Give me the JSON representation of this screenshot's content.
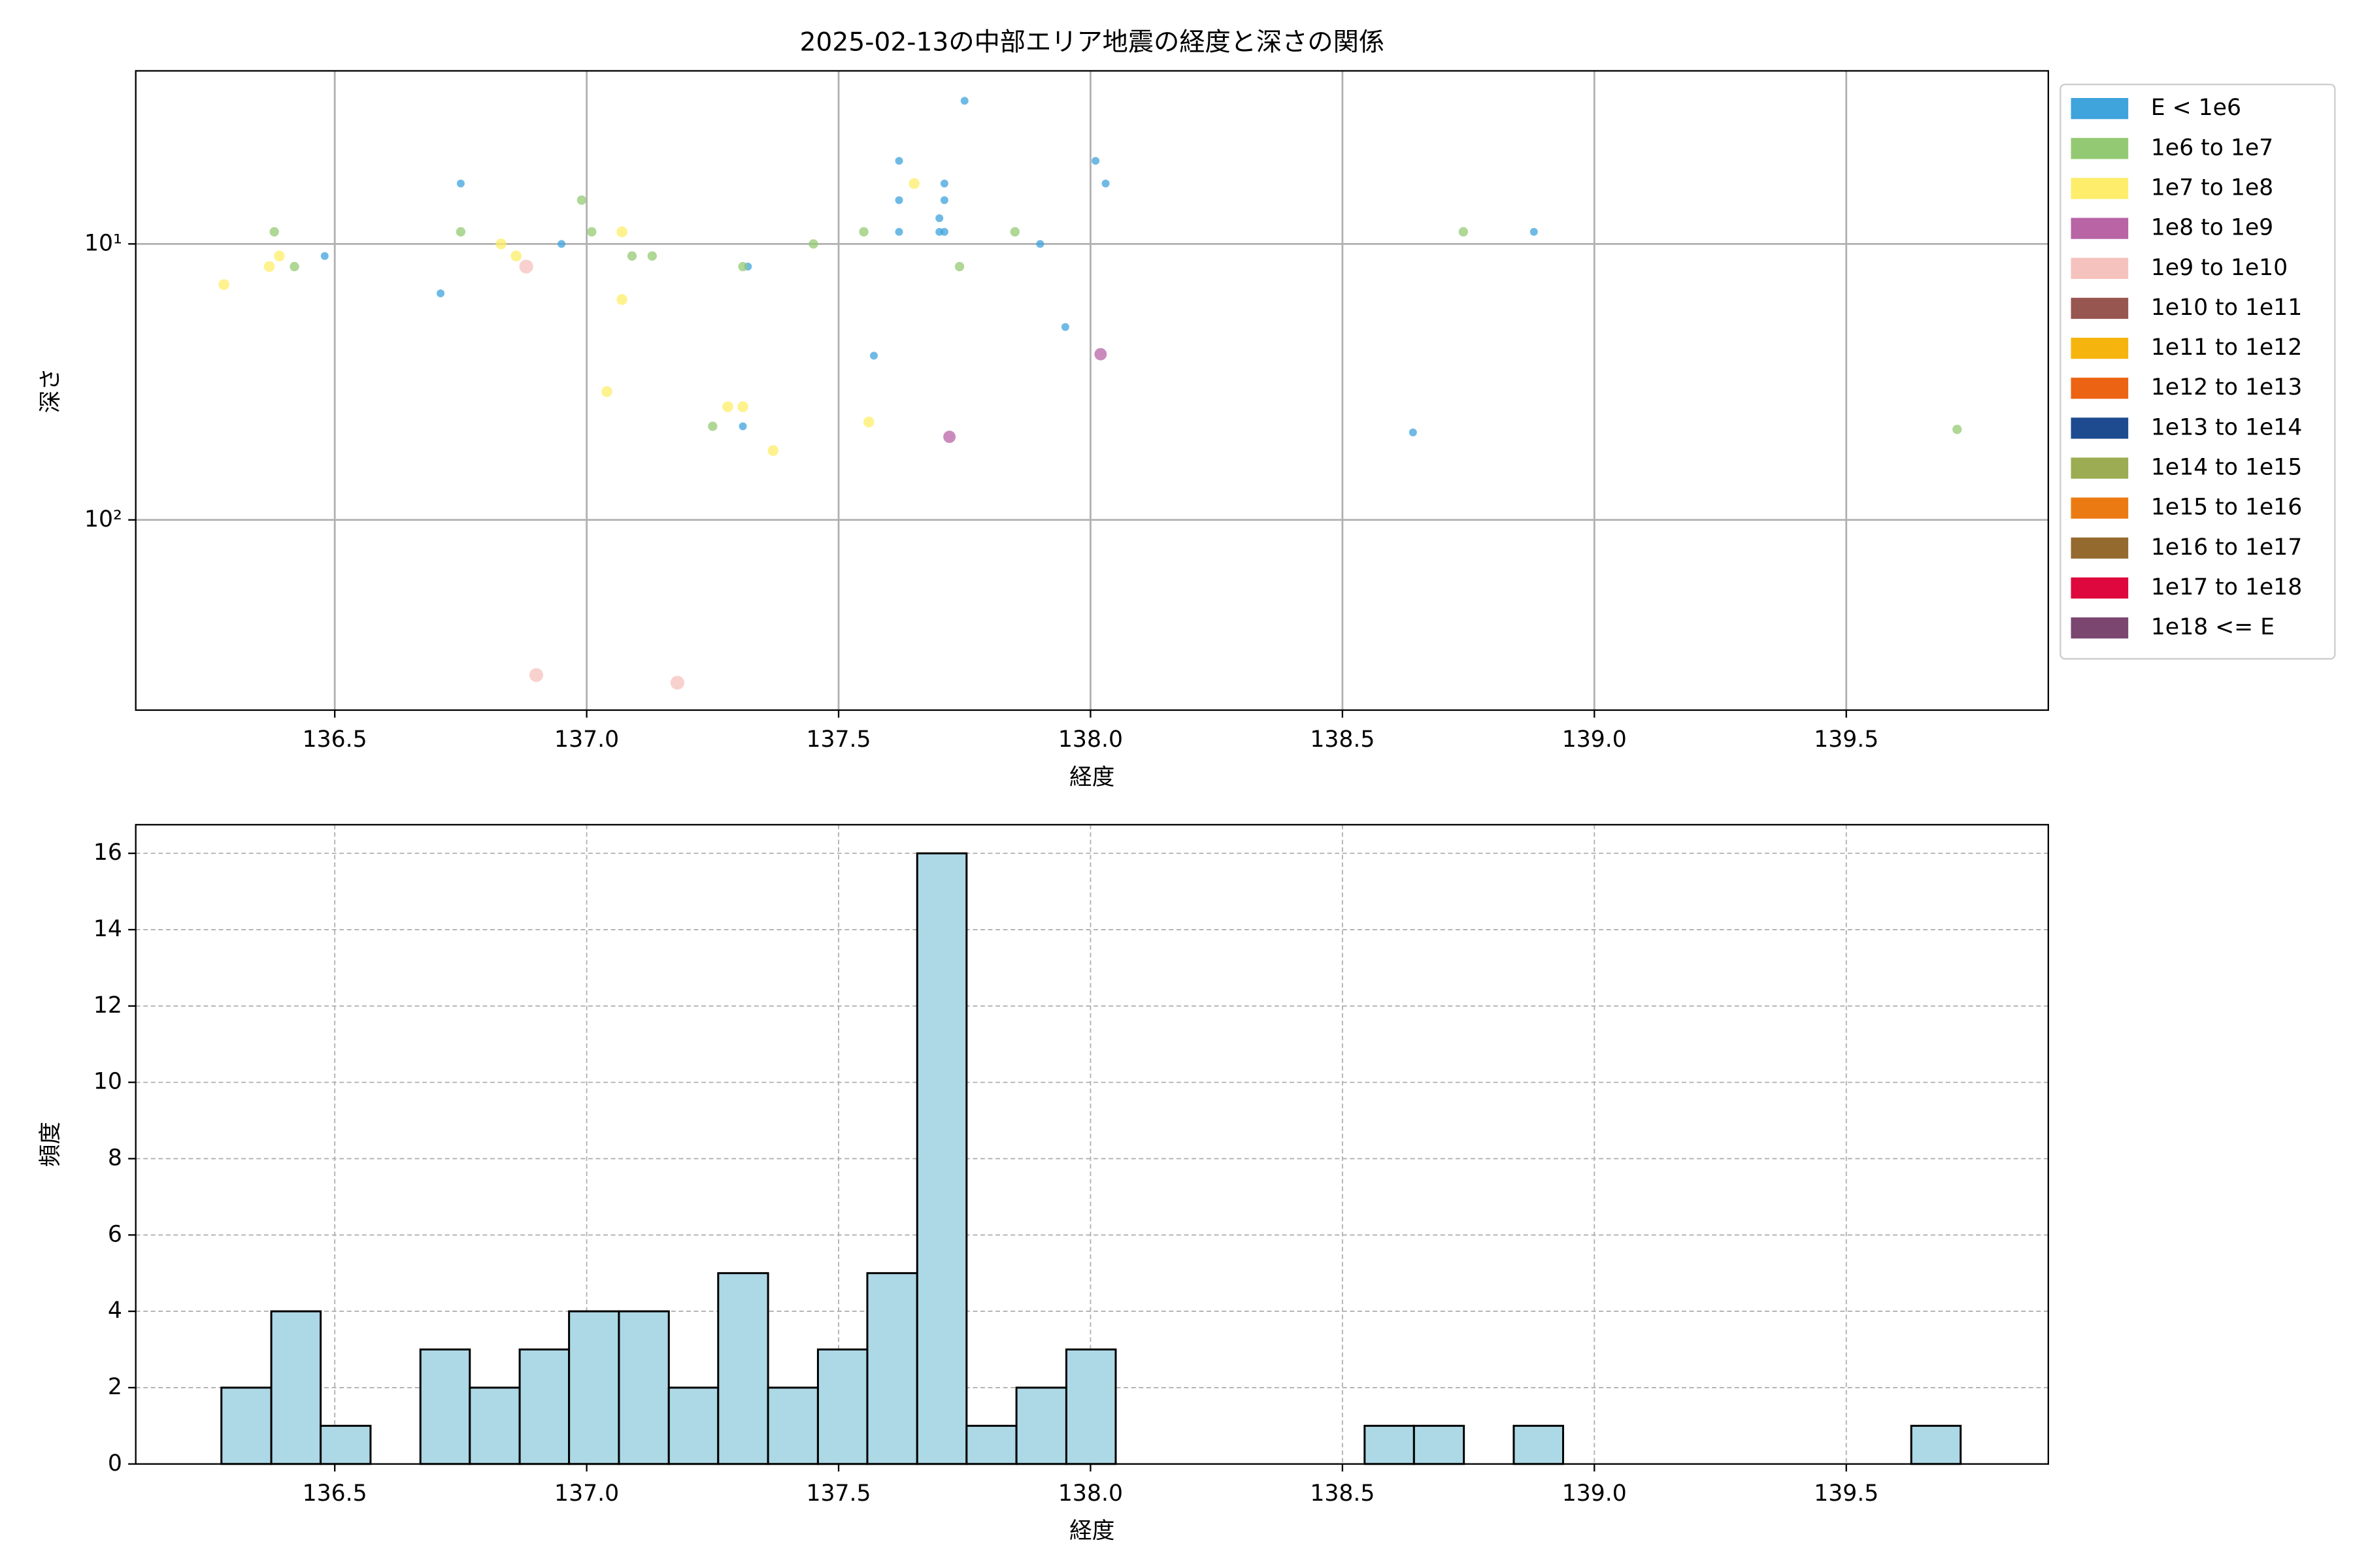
{
  "chart_data": [
    {
      "type": "scatter",
      "title": "2025-02-13の中部エリア地震の経度と深さの関係",
      "xlabel": "経度",
      "ylabel": "深さ",
      "xlim": [
        136.105,
        139.901
      ],
      "ylim": [
        2.36,
        489
      ],
      "yscale": "log",
      "yinvert": true,
      "grid": true,
      "legend": "outside-right",
      "xticks": [
        136.5,
        {
          "value": 137,
          "label": "137.0"
        },
        137.5,
        {
          "value": 138,
          "label": "138.0"
        },
        138.5,
        {
          "value": 139,
          "label": "139.0"
        },
        139.5
      ],
      "yticks": [
        {
          "value": 10,
          "label": "10¹"
        },
        {
          "value": 100,
          "label": "10²"
        }
      ],
      "series": [
        {
          "name": "E < 1e6",
          "color": "#3fa3dc",
          "x": [
            136.75,
            136.48,
            136.71,
            136.95,
            137.31,
            137.32,
            137.57,
            137.62,
            137.62,
            137.62,
            137.75,
            137.71,
            137.71,
            137.7,
            137.7,
            137.71,
            137.9,
            137.95,
            138.01,
            138.03,
            138.64,
            138.88
          ],
          "values": [
            6.04,
            11.06,
            15.1,
            10,
            45.8,
            12.08,
            25.4,
            5.0,
            6.94,
            9.04,
            3.03,
            6.04,
            6.94,
            8.07,
            9.04,
            9.04,
            10,
            20,
            5.0,
            6.04,
            48.2,
            9.04
          ]
        },
        {
          "name": "1e6 to 1e7",
          "color": "#94c973",
          "x": [
            136.38,
            136.42,
            136.75,
            136.99,
            137.01,
            137.09,
            137.13,
            137.25,
            137.31,
            137.45,
            137.55,
            137.74,
            137.85,
            138.74,
            139.72
          ],
          "values": [
            9.04,
            12.08,
            9.04,
            6.94,
            9.04,
            11.06,
            11.06,
            45.8,
            12.08,
            10,
            9.04,
            12.08,
            9.04,
            9.04,
            47.0
          ]
        },
        {
          "name": "1e7 to 1e8",
          "color": "#fded6a",
          "x": [
            136.28,
            136.37,
            136.39,
            136.83,
            136.86,
            137.07,
            137.07,
            137.04,
            137.28,
            137.31,
            137.37,
            137.56,
            137.65
          ],
          "values": [
            14.04,
            12.08,
            11.06,
            10,
            11.06,
            9.04,
            15.9,
            34.3,
            38.9,
            38.9,
            56.1,
            44.2,
            6.04
          ]
        },
        {
          "name": "1e8 to 1e9",
          "color": "#b864a5",
          "x": [
            137.72,
            138.02
          ],
          "values": [
            50.0,
            25.1
          ]
        },
        {
          "name": "1e9 to 1e10",
          "color": "#f6c2bd",
          "x": [
            136.88,
            136.9,
            137.18
          ],
          "values": [
            12.08,
            365,
            389
          ]
        },
        {
          "name": "1e10 to 1e11",
          "color": "#985650",
          "x": [],
          "values": []
        },
        {
          "name": "1e11 to 1e12",
          "color": "#f6b40f",
          "x": [],
          "values": []
        },
        {
          "name": "1e12 to 1e13",
          "color": "#ec6313",
          "x": [],
          "values": []
        },
        {
          "name": "1e13 to 1e14",
          "color": "#1e4a8f",
          "x": [],
          "values": []
        },
        {
          "name": "1e14 to 1e15",
          "color": "#9bac52",
          "x": [],
          "values": []
        },
        {
          "name": "1e15 to 1e16",
          "color": "#ec7a13",
          "x": [],
          "values": []
        },
        {
          "name": "1e16 to 1e17",
          "color": "#956a2f",
          "x": [],
          "values": []
        },
        {
          "name": "1e17 to 1e18",
          "color": "#de073e",
          "x": [],
          "values": []
        },
        {
          "name": "1e18 <= E",
          "color": "#7b4670",
          "x": [],
          "values": []
        }
      ]
    },
    {
      "type": "histogram",
      "xlabel": "経度",
      "ylabel": "頻度",
      "color": "#add8e6",
      "edgecolor": "#000000",
      "grid": "dashed",
      "xlim": [
        136.105,
        139.901
      ],
      "ylim": [
        0,
        16.75
      ],
      "xticks": [
        136.5,
        {
          "value": 137,
          "label": "137.0"
        },
        137.5,
        {
          "value": 138,
          "label": "138.0"
        },
        138.5,
        {
          "value": 139,
          "label": "139.0"
        },
        139.5
      ],
      "yticks": [
        0,
        2,
        4,
        6,
        8,
        10,
        12,
        14,
        16
      ],
      "bins": [
        136.275,
        136.374,
        136.472,
        136.571,
        136.67,
        136.768,
        136.867,
        136.965,
        137.064,
        137.163,
        137.261,
        137.36,
        137.459,
        137.557,
        137.656,
        137.754,
        137.853,
        137.952,
        138.05,
        138.149,
        138.248,
        138.346,
        138.445,
        138.544,
        138.642,
        138.741,
        138.84,
        138.938,
        139.037,
        139.136,
        139.234,
        139.333,
        139.431,
        139.53,
        139.629,
        139.727
      ],
      "values": [
        2,
        4,
        1,
        0,
        3,
        2,
        3,
        4,
        4,
        2,
        5,
        2,
        3,
        5,
        16,
        1,
        2,
        3,
        0,
        0,
        0,
        0,
        0,
        1,
        1,
        0,
        1,
        0,
        0,
        0,
        0,
        0,
        0,
        0,
        1
      ]
    }
  ]
}
